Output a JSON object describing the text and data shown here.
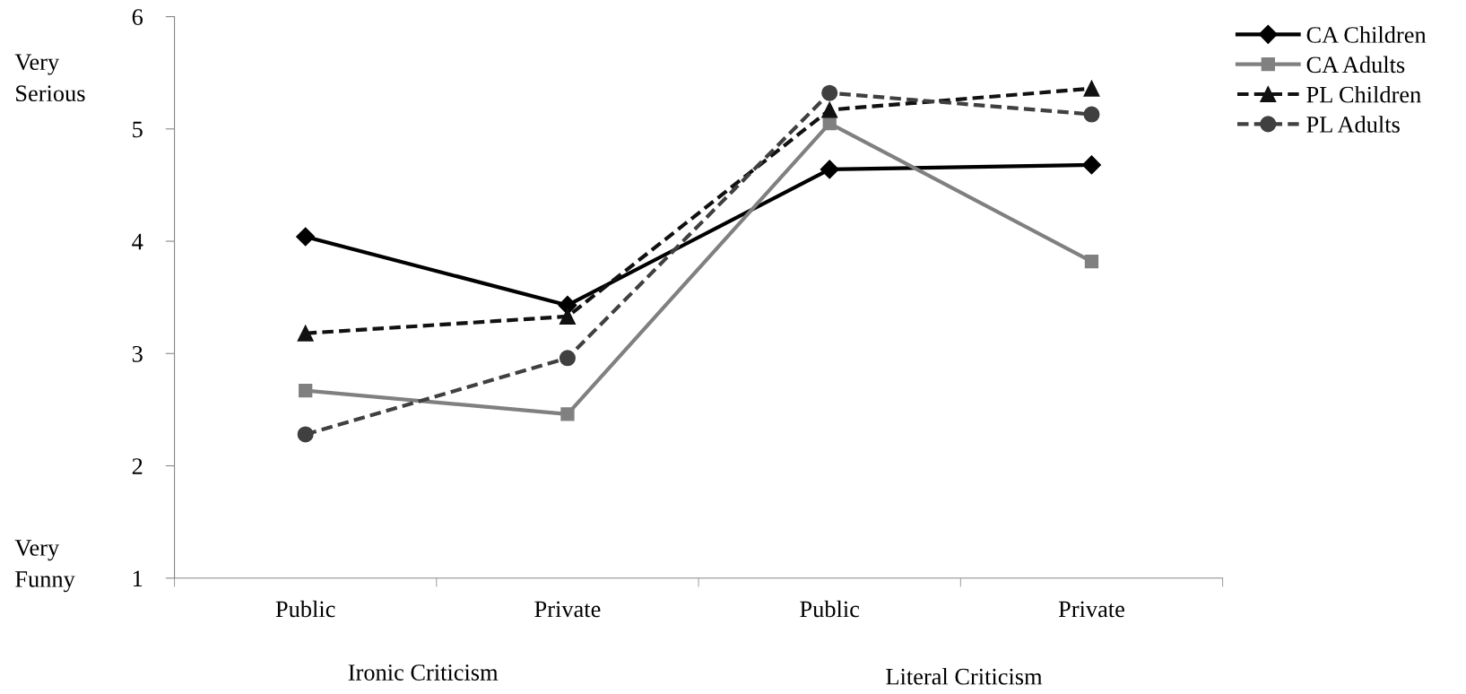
{
  "chart_data": {
    "type": "line",
    "categories": [
      "Public",
      "Private",
      "Public",
      "Private"
    ],
    "series": [
      {
        "name": "CA Children",
        "color": "#000000",
        "marker": "diamond",
        "line_style": "solid",
        "values": [
          4.04,
          3.43,
          4.64,
          4.68
        ]
      },
      {
        "name": "CA Adults",
        "color": "#808080",
        "marker": "square",
        "line_style": "solid",
        "values": [
          2.67,
          2.46,
          5.05,
          3.82
        ]
      },
      {
        "name": "PL Children",
        "color": "#111111",
        "marker": "triangle",
        "line_style": "dashed",
        "values": [
          3.18,
          3.33,
          5.17,
          5.36
        ]
      },
      {
        "name": "PL Adults",
        "color": "#404040",
        "marker": "circle",
        "line_style": "dashed",
        "values": [
          2.28,
          2.96,
          5.32,
          5.13
        ]
      }
    ],
    "ylim": [
      1,
      6
    ],
    "yticks": [
      1,
      2,
      3,
      4,
      5,
      6
    ],
    "grid": false,
    "legend": "top right",
    "annotations": [
      "Very\nSerious",
      "Very\nFunny",
      "Ironic Criticism",
      "Literal Criticism"
    ]
  }
}
